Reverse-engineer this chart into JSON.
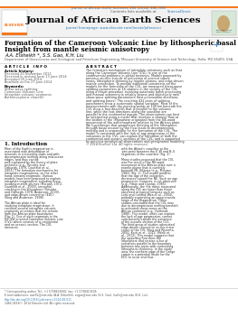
{
  "journal_line": "Journal of African Earth Sciences 100 (2014) 386–398",
  "header_text": "Contents lists available at ScienceDirect",
  "journal_title": "Journal of African Earth Sciences",
  "journal_url": "journal homepage: www.elsevier.com/locate/jafrearsci",
  "paper_title_line1": "Formation of the Cameroon Volcanic Line by lithospheric basal erosion:",
  "paper_title_line2": "Insight from mantle seismic anisotropy",
  "authors": "A.A. Elsheikh *, S.S. Gao, K.H. Liu",
  "affiliation": "Department of Geosciences and Geological and Petroleum Engineering, Missouri University of Science and Technology, Rolla, MO 65409, USA",
  "article_info_title": "A R T I C L E   I N F O",
  "abstract_title": "A B S T R A C T",
  "article_history_label": "Article history:",
  "received_label": "Received 20 November 2013",
  "received_revised": "Received in revised form 13 June 2014",
  "accepted": "Accepted 25 June 2014",
  "available": "Available online 27 June 2014",
  "keywords_label": "Keywords:",
  "keyword1": "Shear wave splitting",
  "keyword2": "Cameroon Volcanic Line",
  "keyword3": "Intraplate volcanic segments",
  "keyword4": "Asthenospheric channel",
  "abstract_text": "The formation mechanism of intraplate volcanoes such as that along the Cameroon Volcanic Line (CVL) is one of the controversial problems in global tectonics. Models proposed by previous studies include re-activation of ancient suture zones, lithospheric thinning by mantle plumes, and edge-driven mantle convection. To provide additional constraints on the models for the formation of the CVL, we measured shear-wave splitting parameters at 16 stations in the vicinity of the CVL using a robust procedure involving automatic batch processing and manual screening to reliably assess and objectively rank shear-wave splitting parameters (fast polarization directions and splitting times). The resulting 432 pairs of splitting parameters show a systematic spatial variation. Most of the measurements with ray-piercing points at 100 km beneath the CVL show a fast direction that is parallel to the volcanic line, while the fast directions along the coastline are parallel to the continental margin. The observations can best be interpreted using a model that involves a channel flow at the bottom of the lithosphere originated from the NE-ward movement of the asthenospheric relative to the African plate. We hypothesize that progressive thinning of the lithosphere through basal erosion by the flow leads to decompression melting and is responsible for the formation of the CVL. The model is consistent with the lack of age progression of the volcanoes in the CVL, can explain the formation of both the continental and oceanic sections of the CVL, and is supported by previous geophysical observations and geodynamic modeling results.",
  "copyright": "© 2014 Elsevier Ltd. All rights reserved.",
  "intro_title": "1. Introduction",
  "intro_text_col1": "Most of the Earth's magmatism is associated with dehydration of minerals in subducting slabs and with decompression melting along mid-ocean ridges, and thus can be well-explained by the theory of plate tectonics (e.g., Turcotte and Oxburgh, 1978; Courtillot et al., 2003). The formation mechanism for intraplate magmatisms, on the other hand, remains enigmatic. Various models have been proposed to explain intraplate magmatism, including those invoking mantle plumes (Morgan, 1972; Courtillot et al., 2003), tensional cracking in the lithosphere (Turcotte and Oxburgh, 1978; Anderson, 2000), and edge-driven convection (EDC) (King and Anderson, 1998).\n\nThe African plate is ideal for studying intraplate magmatism. It contains several intraplate volcanic segments or centers that are remote from the African plate boundaries (Fig. 1). One of such segments is the NE–SW oriented Cameroon Volcanic Line (CVL) which consists of a continental and an oceanic section. The CVL intersects",
  "intro_text_col2": "with the Atlantic coastline at the joint point between the E–W and N–S segments of the coastline (Fig. 2).\n\nMany studies proposed that the CVL was the result of the NE-ward movement of the African plate over a mantle plume that is currently beneath Mt. Bëlinga (e.g., Morgan, 1983) (Fig. 1). This model predicts that the age of the volcanoes decreases toward the NE. Such an age progression, however, is not observed (e.g., Fitton and Dunlop, 1985). Additionally, the ³He ratios measured along the CVL are lower than those observed at typical hotspots such as Loihi and Iceland (Aka et al., 2004), probably suggesting an upper-mantle origin of the magmatism. Other studies concluded that the CVL may due to decompression melting beneath re-activated shear zones on the African continent (e.g., Fairhead, 1988). This model, while can explain the lack of age progression, cannot satisfactorily explain the existence of the oceanic section of the CVL. The third group of studies advocated edge-driven convection as the major cause of the CVL (King and Ritsema, 2000; Koch et al., 2012; Milelli et al., 2012). This model suggests that the upwelling flow thins the lithosphere and creates a line of volcanoes parallel to the boundary between two areas with contrasting lithospheric thickness. In the study area, the northern edge of the Congo craton is a potential locale for the EDC to occur and thus",
  "footer_note1": "* Corresponding author. Tel.: +1 5738413606; fax: +1 5738413606.",
  "footer_note2": "E-mail addresses: aae5b@mst.edu (A.A. Elsheikh), ssgao@mst.edu (S.S. Gao), liukh@mst.edu (K.H. Liu).",
  "doi_text": "http://dx.doi.org/10.1016/j.jafrearsci.2014.08.011",
  "issn_text": "1464-343X/© 2014 Elsevier Ltd. All rights reserved.",
  "bg_color": "#ffffff",
  "header_bg": "#f2f2f2",
  "orange_bar": "#f47920",
  "blue_link": "#2878b5",
  "gray_line": "#cccccc"
}
